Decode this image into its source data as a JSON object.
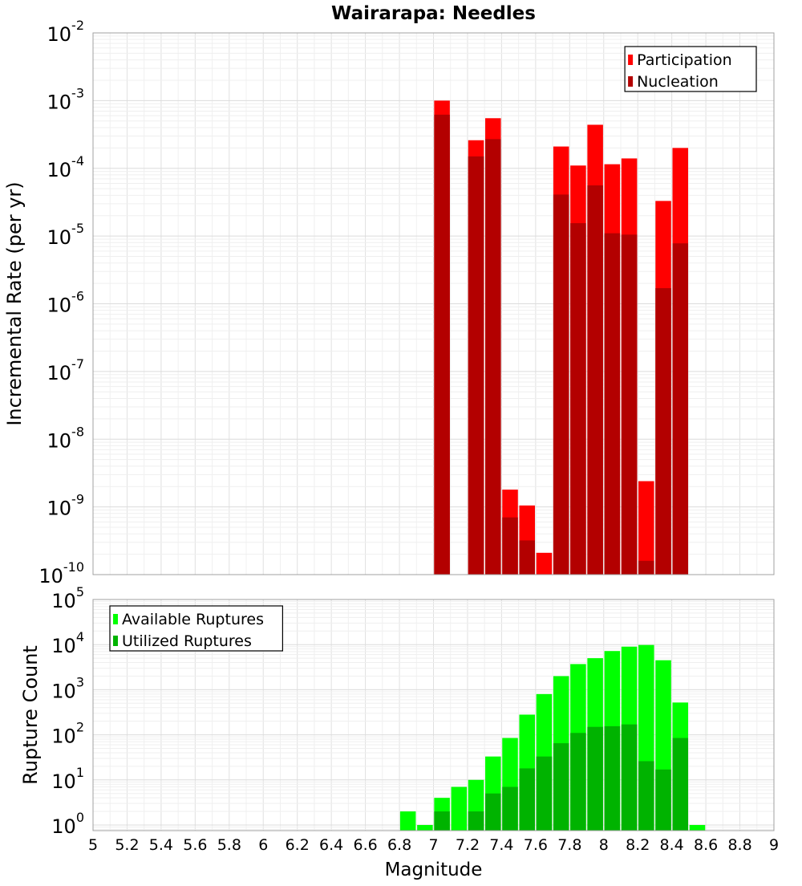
{
  "chart_data": [
    {
      "type": "bar",
      "title": "Wairarapa: Needles",
      "xlabel": "",
      "ylabel": "Incremental Rate (per yr)",
      "yscale": "log",
      "xlim": [
        5,
        9
      ],
      "ylim": [
        1e-10,
        0.01
      ],
      "grid": true,
      "legend_position": "top-right",
      "x": [
        7.05,
        7.15,
        7.25,
        7.35,
        7.45,
        7.55,
        7.65,
        7.75,
        7.85,
        7.95,
        8.05,
        8.15,
        8.25,
        8.35,
        8.45
      ],
      "series": [
        {
          "name": "Participation",
          "color": "#ff0000",
          "values": [
            0.001,
            null,
            0.00026,
            0.00055,
            1.8e-09,
            1.05e-09,
            2.1e-10,
            0.00021,
            0.00011,
            0.00044,
            0.000115,
            0.00014,
            2.4e-09,
            3.3e-05,
            0.0002
          ]
        },
        {
          "name": "Nucleation",
          "color": "#b30000",
          "values": [
            0.00062,
            null,
            0.00015,
            0.00027,
            7e-10,
            3.2e-10,
            null,
            4.1e-05,
            1.55e-05,
            5.6e-05,
            1.1e-05,
            1.05e-05,
            1.6e-10,
            1.7e-06,
            7.8e-06
          ]
        }
      ],
      "yticks": [
        {
          "base": "10",
          "exp": "-2"
        },
        {
          "base": "10",
          "exp": "-3"
        },
        {
          "base": "10",
          "exp": "-4"
        },
        {
          "base": "10",
          "exp": "-5"
        },
        {
          "base": "10",
          "exp": "-6"
        },
        {
          "base": "10",
          "exp": "-7"
        },
        {
          "base": "10",
          "exp": "-8"
        },
        {
          "base": "10",
          "exp": "-9"
        },
        {
          "base": "10",
          "exp": "-10"
        }
      ]
    },
    {
      "type": "bar",
      "title": "",
      "xlabel": "Magnitude",
      "ylabel": "Rupture Count",
      "yscale": "log",
      "xlim": [
        5,
        9
      ],
      "ylim": [
        0.75,
        100000
      ],
      "grid": true,
      "legend_position": "top-left",
      "x": [
        6.85,
        6.95,
        7.05,
        7.15,
        7.25,
        7.35,
        7.45,
        7.55,
        7.65,
        7.75,
        7.85,
        7.95,
        8.05,
        8.15,
        8.25,
        8.35,
        8.45,
        8.55
      ],
      "series": [
        {
          "name": "Available Ruptures",
          "color": "#00ff00",
          "values": [
            2,
            1,
            4,
            7,
            10,
            33,
            85,
            280,
            800,
            2000,
            3700,
            5000,
            7200,
            9000,
            9800,
            4500,
            520,
            1
          ]
        },
        {
          "name": "Utilized Ruptures",
          "color": "#00b300",
          "values": [
            null,
            null,
            2,
            null,
            2,
            5,
            7,
            18,
            33,
            65,
            110,
            150,
            155,
            170,
            26,
            17,
            85,
            null
          ]
        }
      ],
      "yticks": [
        {
          "base": "10",
          "exp": "5"
        },
        {
          "base": "10",
          "exp": "4"
        },
        {
          "base": "10",
          "exp": "3"
        },
        {
          "base": "10",
          "exp": "2"
        },
        {
          "base": "10",
          "exp": "1"
        },
        {
          "base": "10",
          "exp": "0"
        }
      ],
      "xticks": [
        "5",
        "5.2",
        "5.4",
        "5.6",
        "5.8",
        "6",
        "6.2",
        "6.4",
        "6.6",
        "6.8",
        "7",
        "7.2",
        "7.4",
        "7.6",
        "7.8",
        "8",
        "8.2",
        "8.4",
        "8.6",
        "8.8",
        "9"
      ]
    }
  ]
}
